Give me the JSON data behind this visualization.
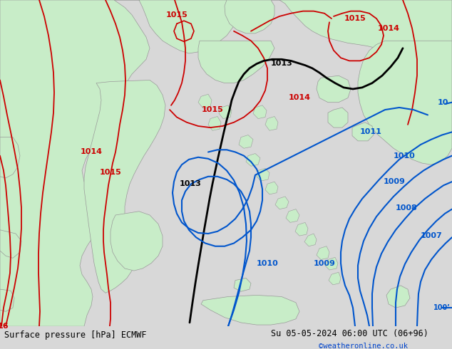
{
  "title_left": "Surface pressure [hPa] ECMWF",
  "title_right": "Su 05-05-2024 06:00 UTC (06+96)",
  "copyright": "©weatheronline.co.uk",
  "land_color": "#c8edc8",
  "sea_color": "#d0d0d0",
  "border_color": "#999999",
  "red": "#cc0000",
  "black": "#000000",
  "blue": "#0055cc"
}
